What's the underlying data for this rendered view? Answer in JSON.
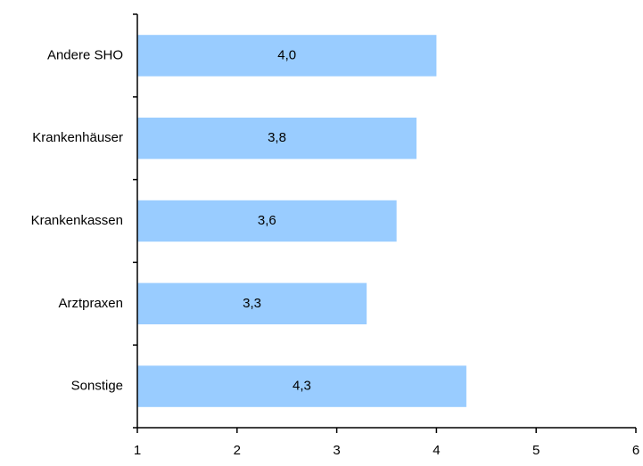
{
  "chart_data": {
    "type": "bar",
    "orientation": "horizontal",
    "categories": [
      "Andere SHO",
      "Krankenhäuser",
      "Krankenkassen",
      "Arztpraxen",
      "Sonstige"
    ],
    "values": [
      4.0,
      3.8,
      3.6,
      3.3,
      4.3
    ],
    "value_labels": [
      "4,0",
      "3,8",
      "3,6",
      "3,3",
      "4,3"
    ],
    "xlim": [
      1,
      6
    ],
    "x_ticks": [
      "1",
      "2",
      "3",
      "4",
      "5",
      "6"
    ],
    "title": "",
    "xlabel": "",
    "ylabel": "",
    "grid": false,
    "legend": "none",
    "bar_color": "#99ccff"
  }
}
